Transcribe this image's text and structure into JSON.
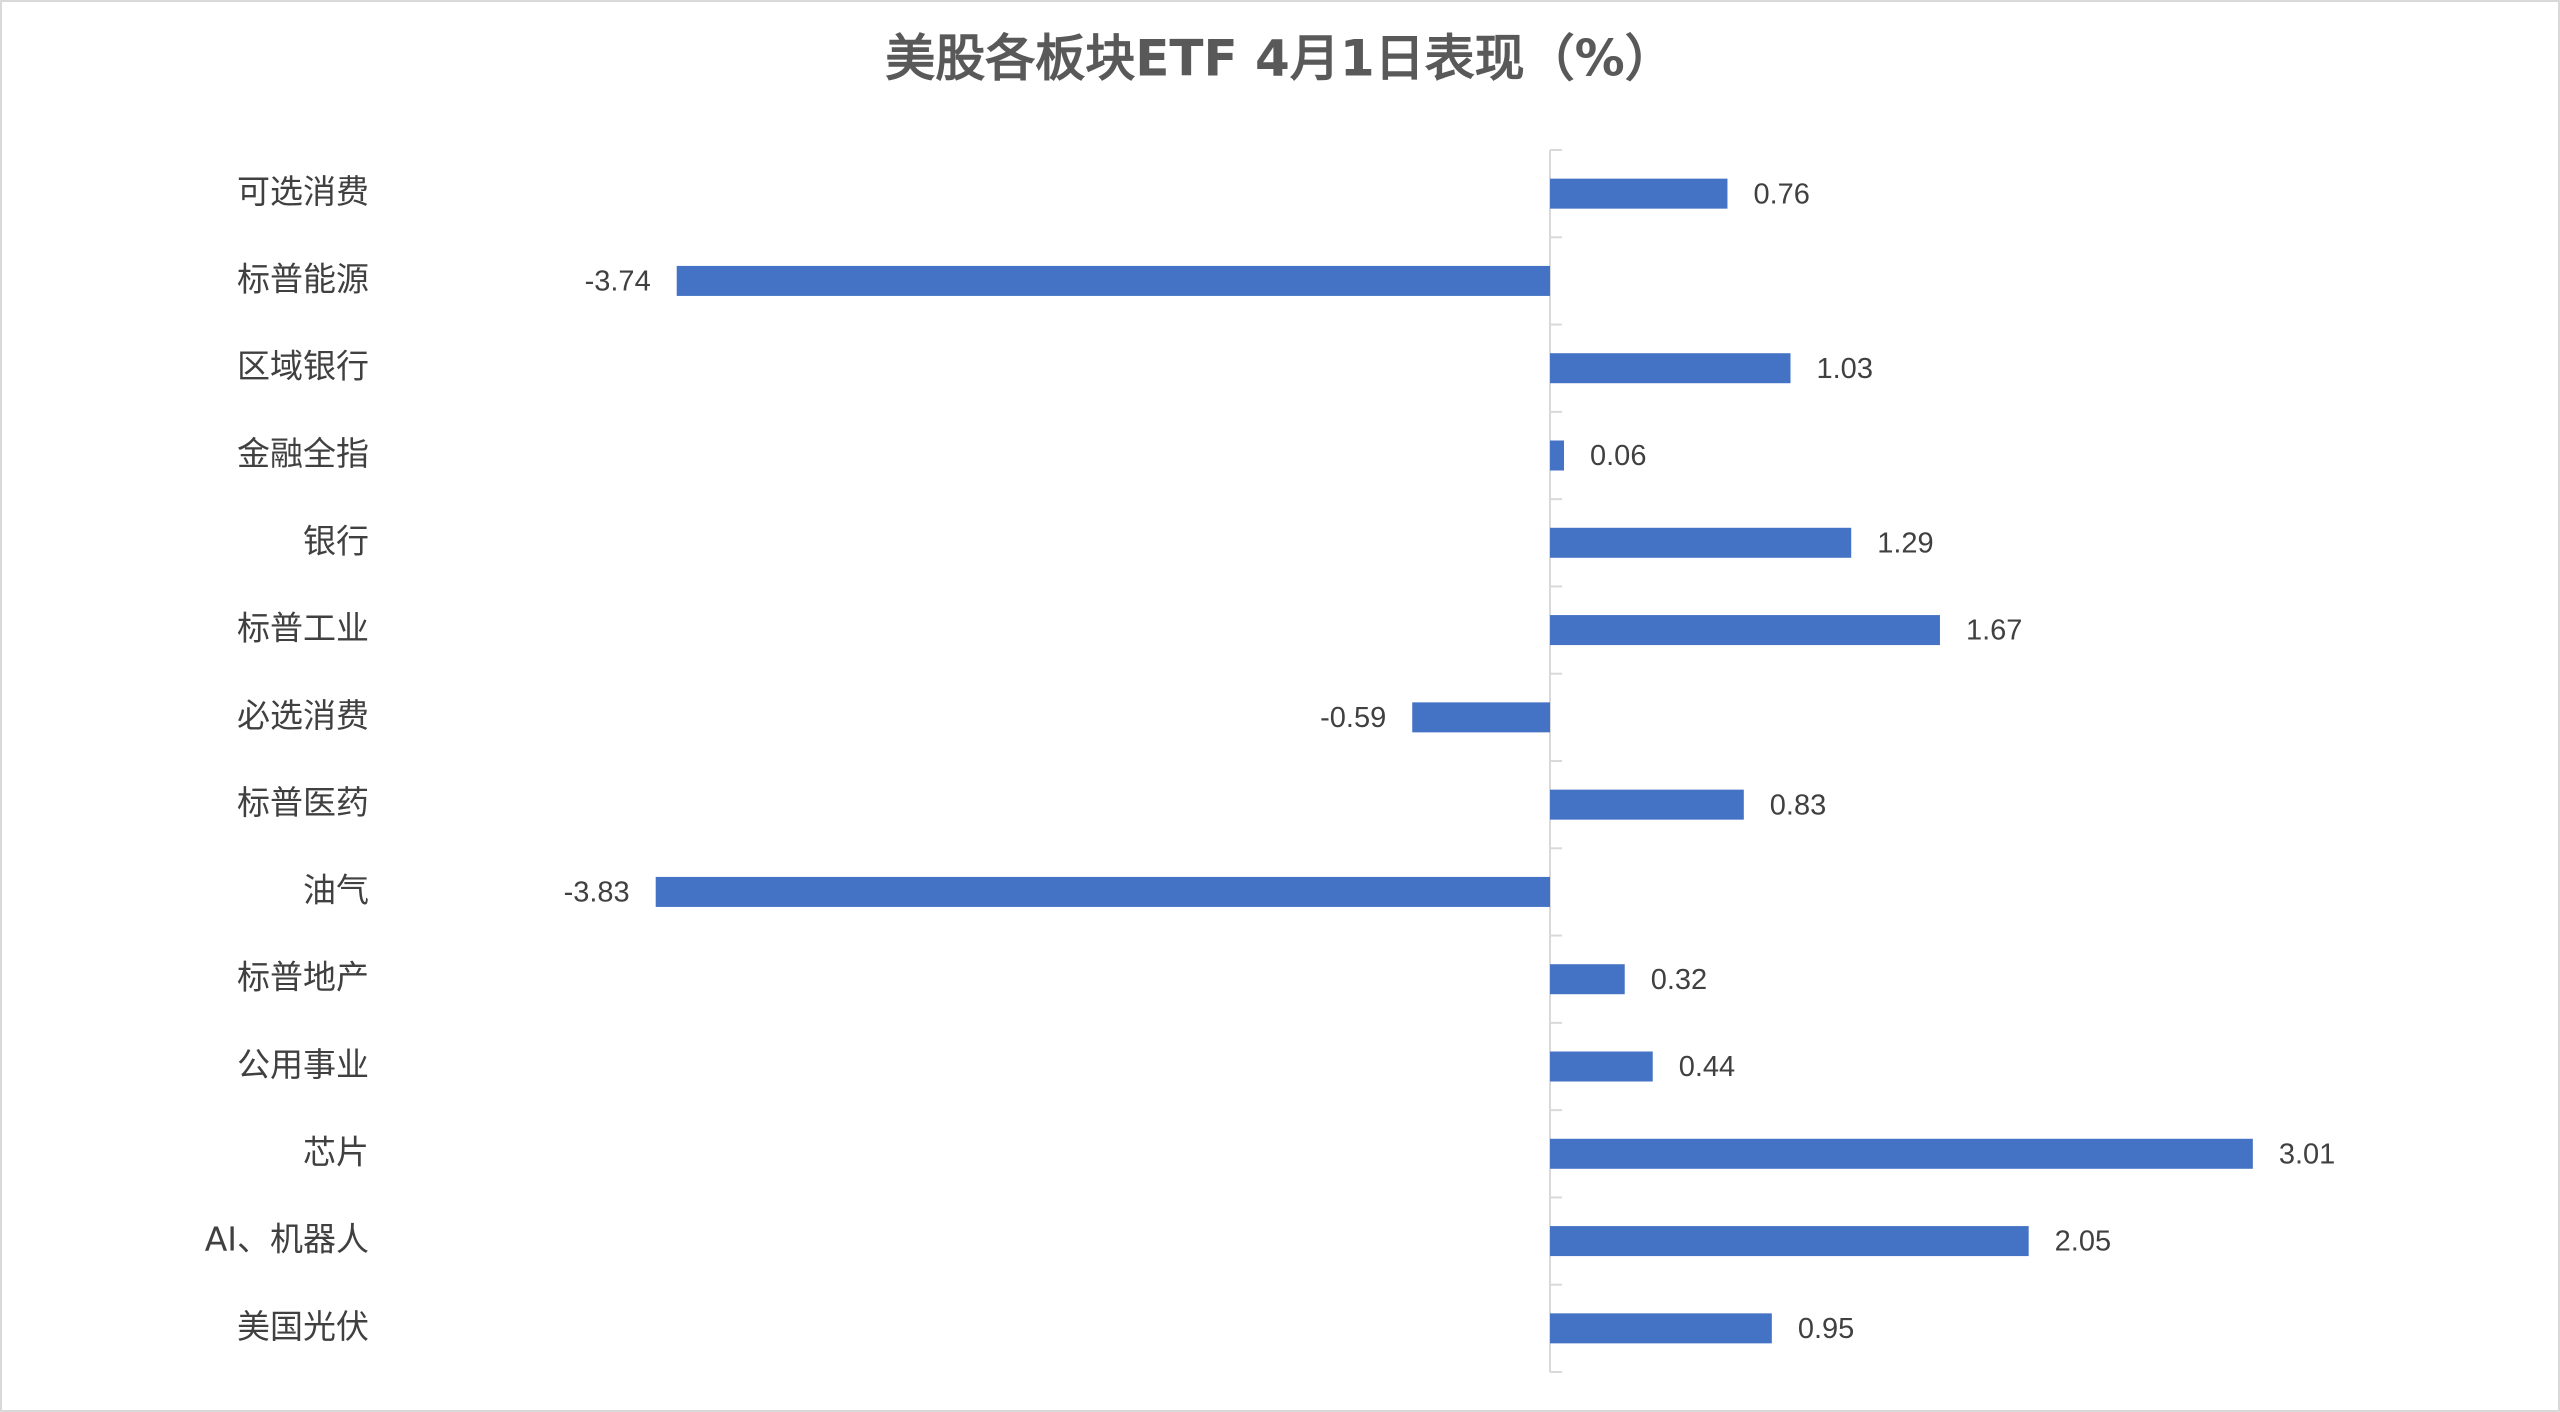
{
  "chart_data": {
    "type": "hbar",
    "title": "美股各板块ETF  4月1日表现（%）",
    "categories": [
      "可选消费",
      "标普能源",
      "区域银行",
      "金融全指",
      "银行",
      "标普工业",
      "必选消费",
      "标普医药",
      "油气",
      "标普地产",
      "公用事业",
      "芯片",
      "AI、机器人",
      "美国光伏"
    ],
    "values": [
      0.76,
      -3.74,
      1.03,
      0.06,
      1.29,
      1.67,
      -0.59,
      0.83,
      -3.83,
      0.32,
      0.44,
      3.01,
      2.05,
      0.95
    ],
    "color": "#4472c4",
    "xlim": [
      -4,
      4
    ]
  }
}
